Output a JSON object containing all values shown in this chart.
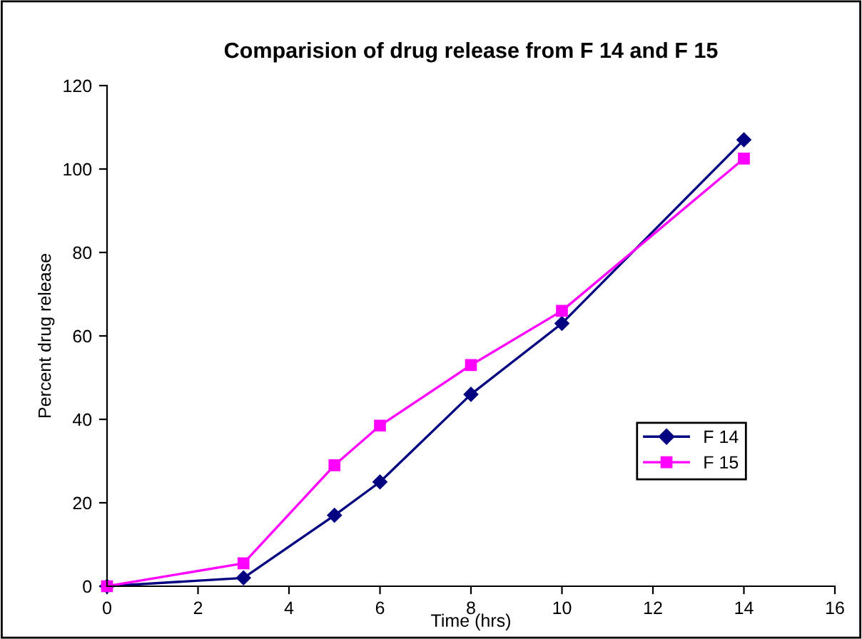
{
  "chart_data": {
    "type": "line",
    "title": "Comparision of drug release from F 14 and F 15",
    "xlabel": "Time (hrs)",
    "ylabel": "Percent drug release",
    "x": [
      0,
      3,
      5,
      6,
      8,
      10,
      14
    ],
    "series": [
      {
        "name": "F 14",
        "color": "#000080",
        "marker": "diamond",
        "values": [
          0,
          2,
          17,
          25,
          46,
          63,
          107
        ]
      },
      {
        "name": "F 15",
        "color": "#ff00ff",
        "marker": "square",
        "values": [
          0,
          5.5,
          29,
          38.5,
          53,
          66,
          102.5
        ]
      }
    ],
    "xlim": [
      0,
      16
    ],
    "xticks": [
      0,
      2,
      4,
      6,
      8,
      10,
      12,
      14,
      16
    ],
    "ylim": [
      0,
      120
    ],
    "yticks": [
      0,
      20,
      40,
      60,
      80,
      100,
      120
    ],
    "grid": false,
    "legend": "right",
    "line_style": "solid"
  }
}
